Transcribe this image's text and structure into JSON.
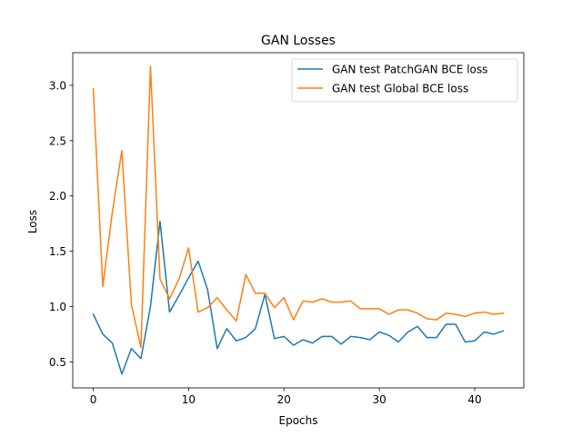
{
  "chart_data": {
    "type": "line",
    "title": "GAN Losses",
    "xlabel": "Epochs",
    "ylabel": "Loss",
    "xlim": [
      -2.15,
      45.15
    ],
    "ylim": [
      0.265,
      3.295
    ],
    "xticks": [
      0,
      10,
      20,
      30,
      40
    ],
    "xtick_labels": [
      "0",
      "10",
      "20",
      "30",
      "40"
    ],
    "yticks": [
      0.5,
      1.0,
      1.5,
      2.0,
      2.5,
      3.0
    ],
    "ytick_labels": [
      "0.5",
      "1.0",
      "1.5",
      "2.0",
      "2.5",
      "3.0"
    ],
    "grid": false,
    "legend_position": "top-right",
    "series": [
      {
        "name": "GAN test PatchGAN BCE loss",
        "color": "#1f77b4",
        "x": [
          0,
          1,
          2,
          3,
          4,
          5,
          6,
          7,
          8,
          9,
          10,
          11,
          12,
          13,
          14,
          15,
          16,
          17,
          18,
          19,
          20,
          21,
          22,
          23,
          24,
          25,
          26,
          27,
          28,
          29,
          30,
          31,
          32,
          33,
          34,
          35,
          36,
          37,
          38,
          39,
          40,
          41,
          42,
          43
        ],
        "values": [
          0.93,
          0.75,
          0.67,
          0.39,
          0.62,
          0.53,
          1.0,
          1.77,
          0.95,
          1.1,
          1.26,
          1.41,
          1.15,
          0.62,
          0.8,
          0.69,
          0.72,
          0.8,
          1.11,
          0.71,
          0.73,
          0.65,
          0.7,
          0.67,
          0.73,
          0.73,
          0.66,
          0.73,
          0.72,
          0.7,
          0.77,
          0.74,
          0.68,
          0.77,
          0.82,
          0.72,
          0.72,
          0.84,
          0.84,
          0.68,
          0.69,
          0.77,
          0.75,
          0.78
        ]
      },
      {
        "name": "GAN test Global BCE loss",
        "color": "#ff7f0e",
        "x": [
          0,
          1,
          2,
          3,
          4,
          5,
          6,
          7,
          8,
          9,
          10,
          11,
          12,
          13,
          14,
          15,
          16,
          17,
          18,
          19,
          20,
          21,
          22,
          23,
          24,
          25,
          26,
          27,
          28,
          29,
          30,
          31,
          32,
          33,
          34,
          35,
          36,
          37,
          38,
          39,
          40,
          41,
          42,
          43
        ],
        "values": [
          2.97,
          1.18,
          1.85,
          2.41,
          1.02,
          0.63,
          3.17,
          1.25,
          1.07,
          1.25,
          1.53,
          0.95,
          0.99,
          1.08,
          0.97,
          0.87,
          1.29,
          1.12,
          1.12,
          0.99,
          1.08,
          0.88,
          1.05,
          1.04,
          1.07,
          1.04,
          1.04,
          1.05,
          0.98,
          0.98,
          0.98,
          0.93,
          0.97,
          0.97,
          0.94,
          0.89,
          0.88,
          0.94,
          0.93,
          0.91,
          0.94,
          0.95,
          0.93,
          0.94
        ]
      }
    ]
  }
}
